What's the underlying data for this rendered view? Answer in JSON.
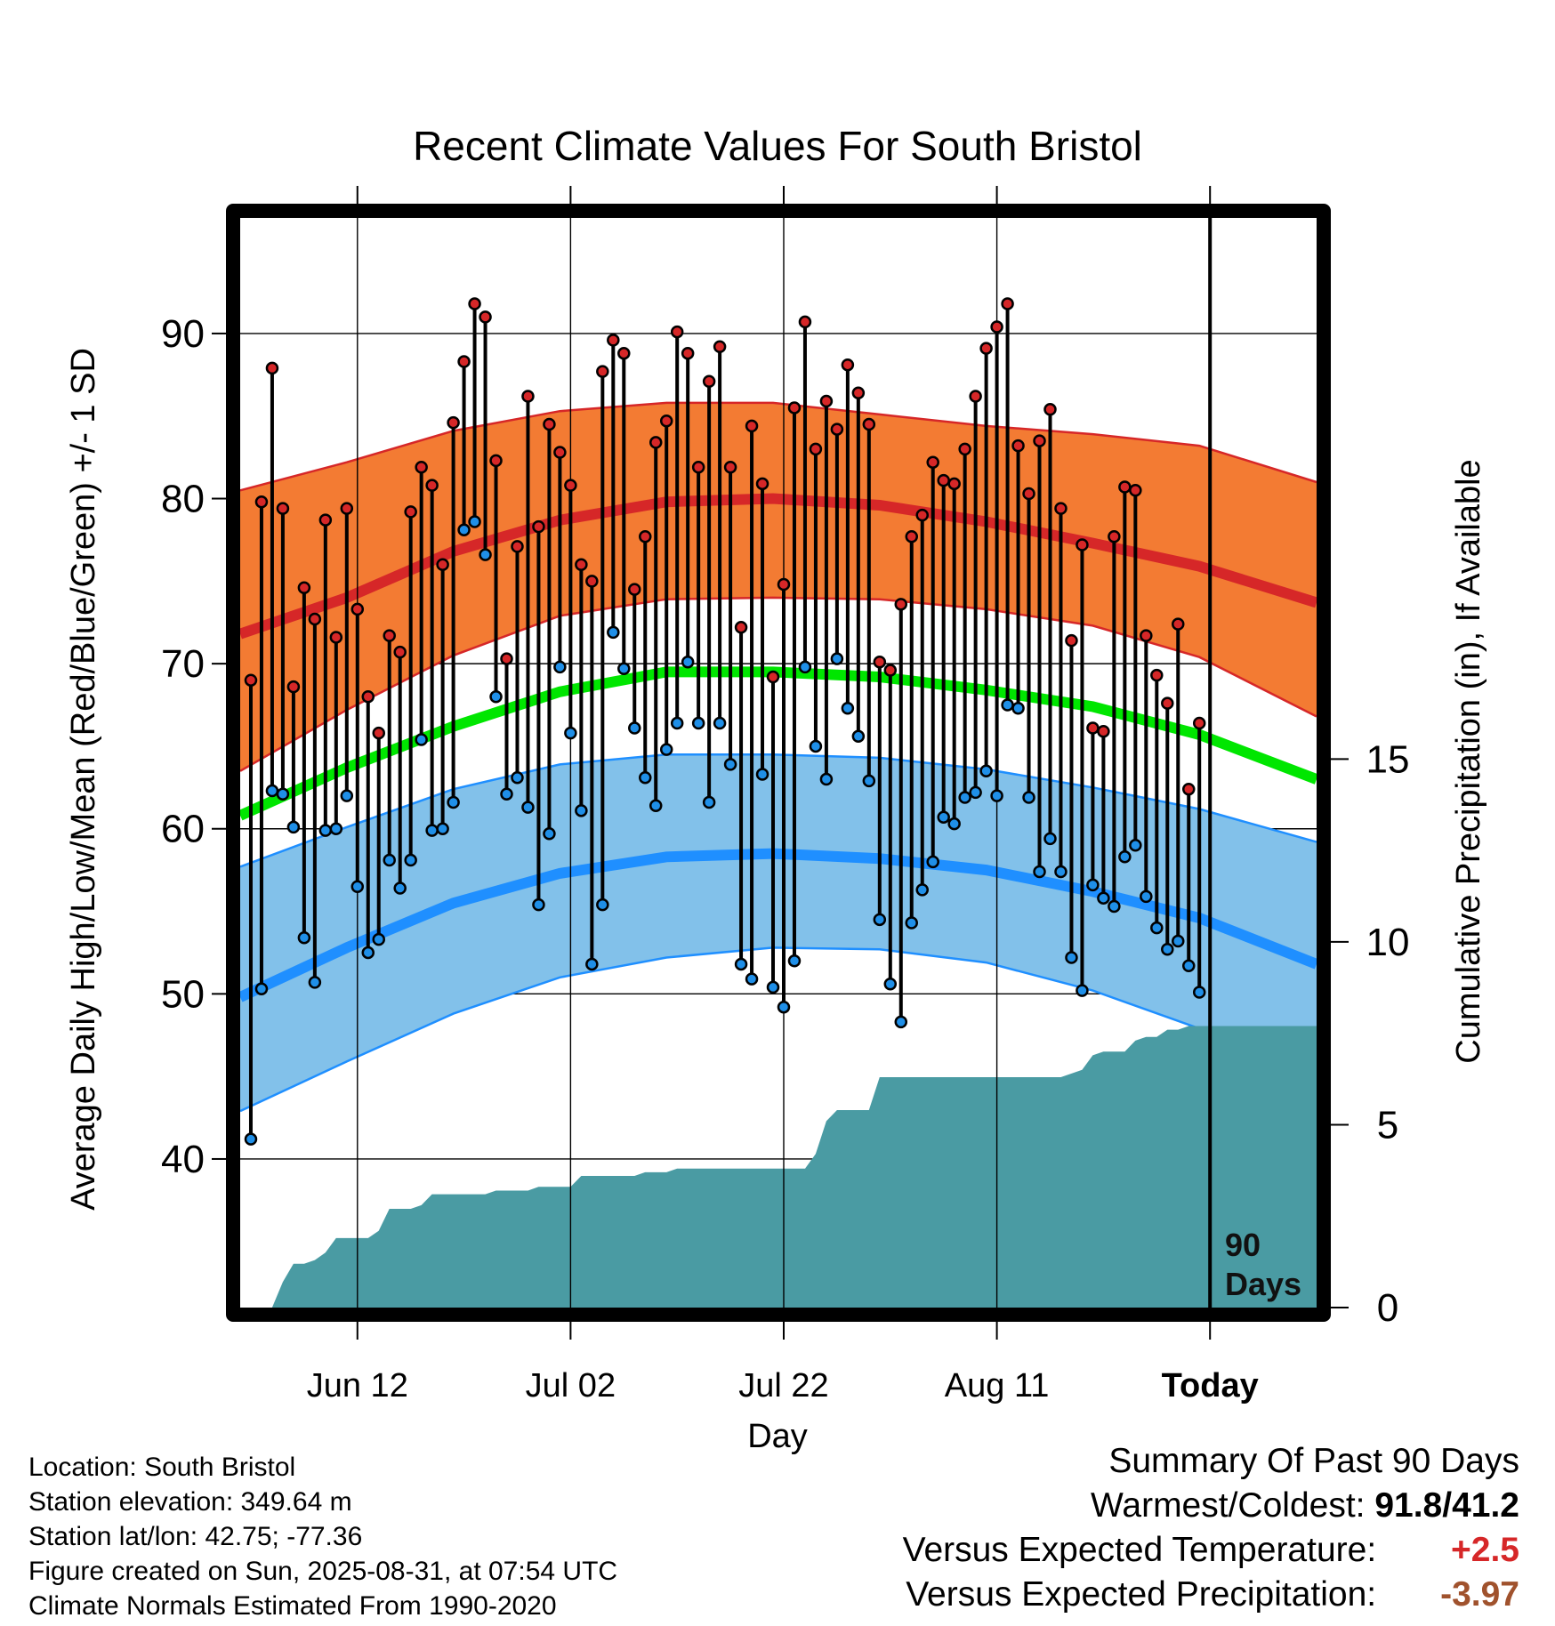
{
  "chart_data": {
    "type": "line",
    "title": "Recent Climate Values For South Bristol",
    "xlabel": "Day",
    "ylabel": "Average Daily High/Low/Mean (Red/Blue/Green) +/- 1 SD",
    "y2label": "Cumulative Precipitation (in), If Available",
    "x_tick_labels": [
      "Jun 12",
      "Jul 02",
      "Jul 22",
      "Aug 11",
      "Today"
    ],
    "x_tick_days": [
      11,
      31,
      51,
      71,
      91
    ],
    "x_range": [
      0,
      101
    ],
    "ylim": [
      31,
      97
    ],
    "y_ticks": [
      40,
      50,
      60,
      70,
      80,
      90
    ],
    "y2lim": [
      0,
      29.8
    ],
    "y2_ticks": [
      0,
      5,
      10,
      15
    ],
    "today_marker": {
      "day": 91,
      "label_line1": "90",
      "label_line2": "Days"
    },
    "grid": true,
    "colors": {
      "high": "#d62728",
      "high_band": "#f37b33",
      "low": "#1f8fff",
      "low_band": "#82c1ea",
      "mean": "#00e600",
      "precip": "#4a9ba3",
      "high_point": "#d62728",
      "low_point": "#1f8fe8"
    },
    "normals": {
      "days": [
        0,
        10,
        20,
        30,
        40,
        50,
        60,
        70,
        80,
        90,
        101
      ],
      "high_mean": [
        71.8,
        74.0,
        76.8,
        78.7,
        79.8,
        80.0,
        79.6,
        78.6,
        77.3,
        75.9,
        73.7
      ],
      "high_plus_sd": [
        80.5,
        82.2,
        84.1,
        85.3,
        85.8,
        85.8,
        85.1,
        84.4,
        83.9,
        83.2,
        81.0
      ],
      "high_minus_sd": [
        63.5,
        67.2,
        70.5,
        72.9,
        73.9,
        74.0,
        73.9,
        73.3,
        72.3,
        70.4,
        66.8
      ],
      "mean": [
        60.8,
        63.7,
        66.2,
        68.3,
        69.5,
        69.5,
        69.2,
        68.4,
        67.4,
        65.7,
        63.0
      ],
      "low_mean": [
        49.8,
        52.8,
        55.5,
        57.3,
        58.3,
        58.5,
        58.2,
        57.5,
        56.2,
        54.6,
        51.8
      ],
      "low_plus_sd": [
        57.7,
        60.1,
        62.4,
        63.9,
        64.5,
        64.5,
        64.3,
        63.6,
        62.5,
        61.2,
        59.2
      ],
      "low_minus_sd": [
        42.9,
        45.9,
        48.8,
        51.0,
        52.2,
        52.8,
        52.7,
        51.9,
        50.2,
        47.9,
        45.0
      ]
    },
    "daily_days": [
      1,
      2,
      3,
      4,
      5,
      6,
      7,
      8,
      9,
      10,
      11,
      12,
      13,
      14,
      15,
      16,
      17,
      18,
      19,
      20,
      21,
      22,
      23,
      24,
      25,
      26,
      27,
      28,
      29,
      30,
      31,
      32,
      33,
      34,
      35,
      36,
      37,
      38,
      39,
      40,
      41,
      42,
      43,
      44,
      45,
      46,
      47,
      48,
      49,
      50,
      51,
      52,
      53,
      54,
      55,
      56,
      57,
      58,
      59,
      60,
      61,
      62,
      63,
      64,
      65,
      66,
      67,
      68,
      69,
      70,
      71,
      72,
      73,
      74,
      75,
      76,
      77,
      78,
      79,
      80,
      81,
      82,
      83,
      84,
      85,
      86,
      87,
      88,
      89,
      90
    ],
    "daily_high": [
      69.0,
      79.8,
      87.9,
      79.4,
      68.6,
      74.6,
      72.7,
      78.7,
      71.6,
      79.4,
      73.3,
      68.0,
      65.8,
      71.7,
      70.7,
      79.2,
      81.9,
      80.8,
      76.0,
      84.6,
      88.3,
      91.8,
      91.0,
      82.3,
      70.3,
      77.1,
      86.2,
      78.3,
      84.5,
      82.8,
      80.8,
      76.0,
      75.0,
      87.7,
      89.6,
      88.8,
      74.5,
      77.7,
      83.4,
      84.7,
      90.1,
      88.8,
      81.9,
      87.1,
      89.2,
      81.9,
      72.2,
      84.4,
      80.9,
      69.2,
      74.8,
      85.5,
      90.7,
      83.0,
      85.9,
      84.2,
      88.1,
      86.4,
      84.5,
      70.1,
      69.6,
      73.6,
      77.7,
      79.0,
      82.2,
      81.1,
      80.9,
      83.0,
      86.2,
      89.1,
      90.4,
      91.8,
      83.2,
      80.3,
      83.5,
      85.4,
      79.4,
      71.4,
      77.2,
      66.1,
      65.9,
      77.7,
      80.7,
      80.5,
      71.7,
      69.3,
      67.6,
      72.4,
      62.4,
      66.4
    ],
    "daily_low": [
      41.2,
      50.3,
      62.3,
      62.1,
      60.1,
      53.4,
      50.7,
      59.9,
      60.0,
      62.0,
      56.5,
      52.5,
      53.3,
      58.1,
      56.4,
      58.1,
      65.4,
      59.9,
      60.0,
      61.6,
      78.1,
      78.6,
      76.6,
      68.0,
      62.1,
      63.1,
      61.3,
      55.4,
      59.7,
      69.8,
      65.8,
      61.1,
      51.8,
      55.4,
      71.9,
      69.7,
      66.1,
      63.1,
      61.4,
      64.8,
      66.4,
      70.1,
      66.4,
      61.6,
      66.4,
      63.9,
      51.8,
      50.9,
      63.3,
      50.4,
      49.2,
      52.0,
      69.8,
      65.0,
      63.0,
      70.3,
      67.3,
      65.6,
      62.9,
      54.5,
      50.6,
      48.3,
      54.3,
      56.3,
      58.0,
      60.7,
      60.3,
      61.9,
      62.2,
      63.5,
      62.0,
      67.5,
      67.3,
      61.9,
      57.4,
      59.4,
      57.4,
      52.2,
      50.2,
      56.6,
      55.8,
      55.3,
      58.3,
      59.0,
      55.9,
      54.0,
      52.7,
      53.2,
      51.7,
      50.1
    ],
    "precip_days": [
      0,
      3,
      4,
      5,
      6,
      7,
      8,
      9,
      10,
      11,
      12,
      13,
      14,
      15,
      16,
      17,
      18,
      19,
      20,
      21,
      22,
      23,
      24,
      25,
      26,
      27,
      28,
      29,
      30,
      31,
      32,
      33,
      34,
      35,
      36,
      37,
      38,
      39,
      40,
      41,
      42,
      43,
      44,
      45,
      46,
      47,
      48,
      49,
      50,
      51,
      52,
      53,
      54,
      55,
      56,
      57,
      58,
      59,
      60,
      61,
      62,
      63,
      64,
      65,
      66,
      67,
      68,
      69,
      70,
      71,
      72,
      73,
      74,
      75,
      76,
      77,
      78,
      79,
      80,
      81,
      82,
      83,
      84,
      85,
      86,
      87,
      88,
      89,
      90,
      91,
      101
    ],
    "precip_cum": [
      0,
      0,
      0.7,
      1.2,
      1.2,
      1.3,
      1.5,
      1.9,
      1.9,
      1.9,
      1.9,
      2.1,
      2.7,
      2.7,
      2.7,
      2.8,
      3.1,
      3.1,
      3.1,
      3.1,
      3.1,
      3.1,
      3.2,
      3.2,
      3.2,
      3.2,
      3.3,
      3.3,
      3.3,
      3.3,
      3.6,
      3.6,
      3.6,
      3.6,
      3.6,
      3.6,
      3.7,
      3.7,
      3.7,
      3.8,
      3.8,
      3.8,
      3.8,
      3.8,
      3.8,
      3.8,
      3.8,
      3.8,
      3.8,
      3.8,
      3.8,
      3.8,
      4.2,
      5.1,
      5.4,
      5.4,
      5.4,
      5.4,
      6.3,
      6.3,
      6.3,
      6.3,
      6.3,
      6.3,
      6.3,
      6.3,
      6.3,
      6.3,
      6.3,
      6.3,
      6.3,
      6.3,
      6.3,
      6.3,
      6.3,
      6.3,
      6.4,
      6.5,
      6.9,
      7.0,
      7.0,
      7.0,
      7.3,
      7.4,
      7.4,
      7.6,
      7.6,
      7.7,
      7.7,
      7.7,
      7.7
    ]
  },
  "footer": {
    "location": "Location: South Bristol",
    "elevation": "Station elevation: 349.64 m",
    "latlon": "Station lat/lon: 42.75; -77.36",
    "created": "Figure created on Sun, 2025-08-31, at 07:54 UTC",
    "normals": "Climate Normals Estimated From 1990-2020"
  },
  "summary": {
    "title": "Summary Of Past 90 Days",
    "warmest_label": "Warmest/Coldest:",
    "warmest_value": "91.8/41.2",
    "temp_label": "Versus Expected Temperature:",
    "temp_value": "+2.5",
    "temp_color": "#d62728",
    "precip_label": "Versus Expected Precipitation:",
    "precip_value": "-3.97",
    "precip_color": "#a0522d"
  }
}
